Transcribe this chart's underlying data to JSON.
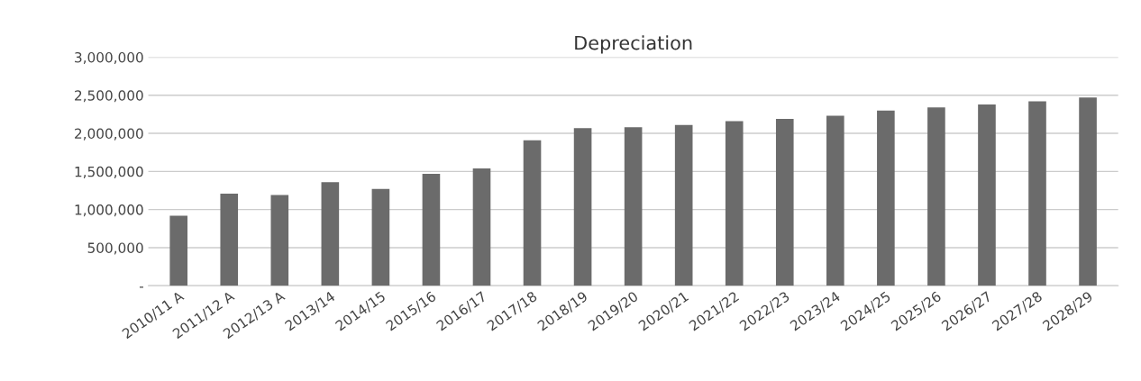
{
  "chart_data": {
    "type": "bar",
    "title": "Depreciation",
    "categories": [
      "2010/11 A",
      "2011/12 A",
      "2012/13 A",
      "2013/14",
      "2014/15",
      "2015/16",
      "2016/17",
      "2017/18",
      "2018/19",
      "2019/20",
      "2020/21",
      "2021/22",
      "2022/23",
      "2023/24",
      "2024/25",
      "2025/26",
      "2026/27",
      "2027/28",
      "2028/29"
    ],
    "values": [
      920000,
      1210000,
      1190000,
      1360000,
      1270000,
      1470000,
      1540000,
      1910000,
      2070000,
      2080000,
      2110000,
      2160000,
      2190000,
      2230000,
      2300000,
      2340000,
      2380000,
      2420000,
      2470000
    ],
    "color": "#6b6b6b",
    "ylim": [
      0,
      3000000
    ],
    "yticks": [
      {
        "value": 0,
        "label": "-"
      },
      {
        "value": 500000,
        "label": "500,000"
      },
      {
        "value": 1000000,
        "label": "1,000,000"
      },
      {
        "value": 1500000,
        "label": "1,500,000"
      },
      {
        "value": 2000000,
        "label": "2,000,000"
      },
      {
        "value": 2500000,
        "label": "2,500,000"
      },
      {
        "value": 3000000,
        "label": "3,000,000"
      }
    ],
    "grid": "y"
  }
}
